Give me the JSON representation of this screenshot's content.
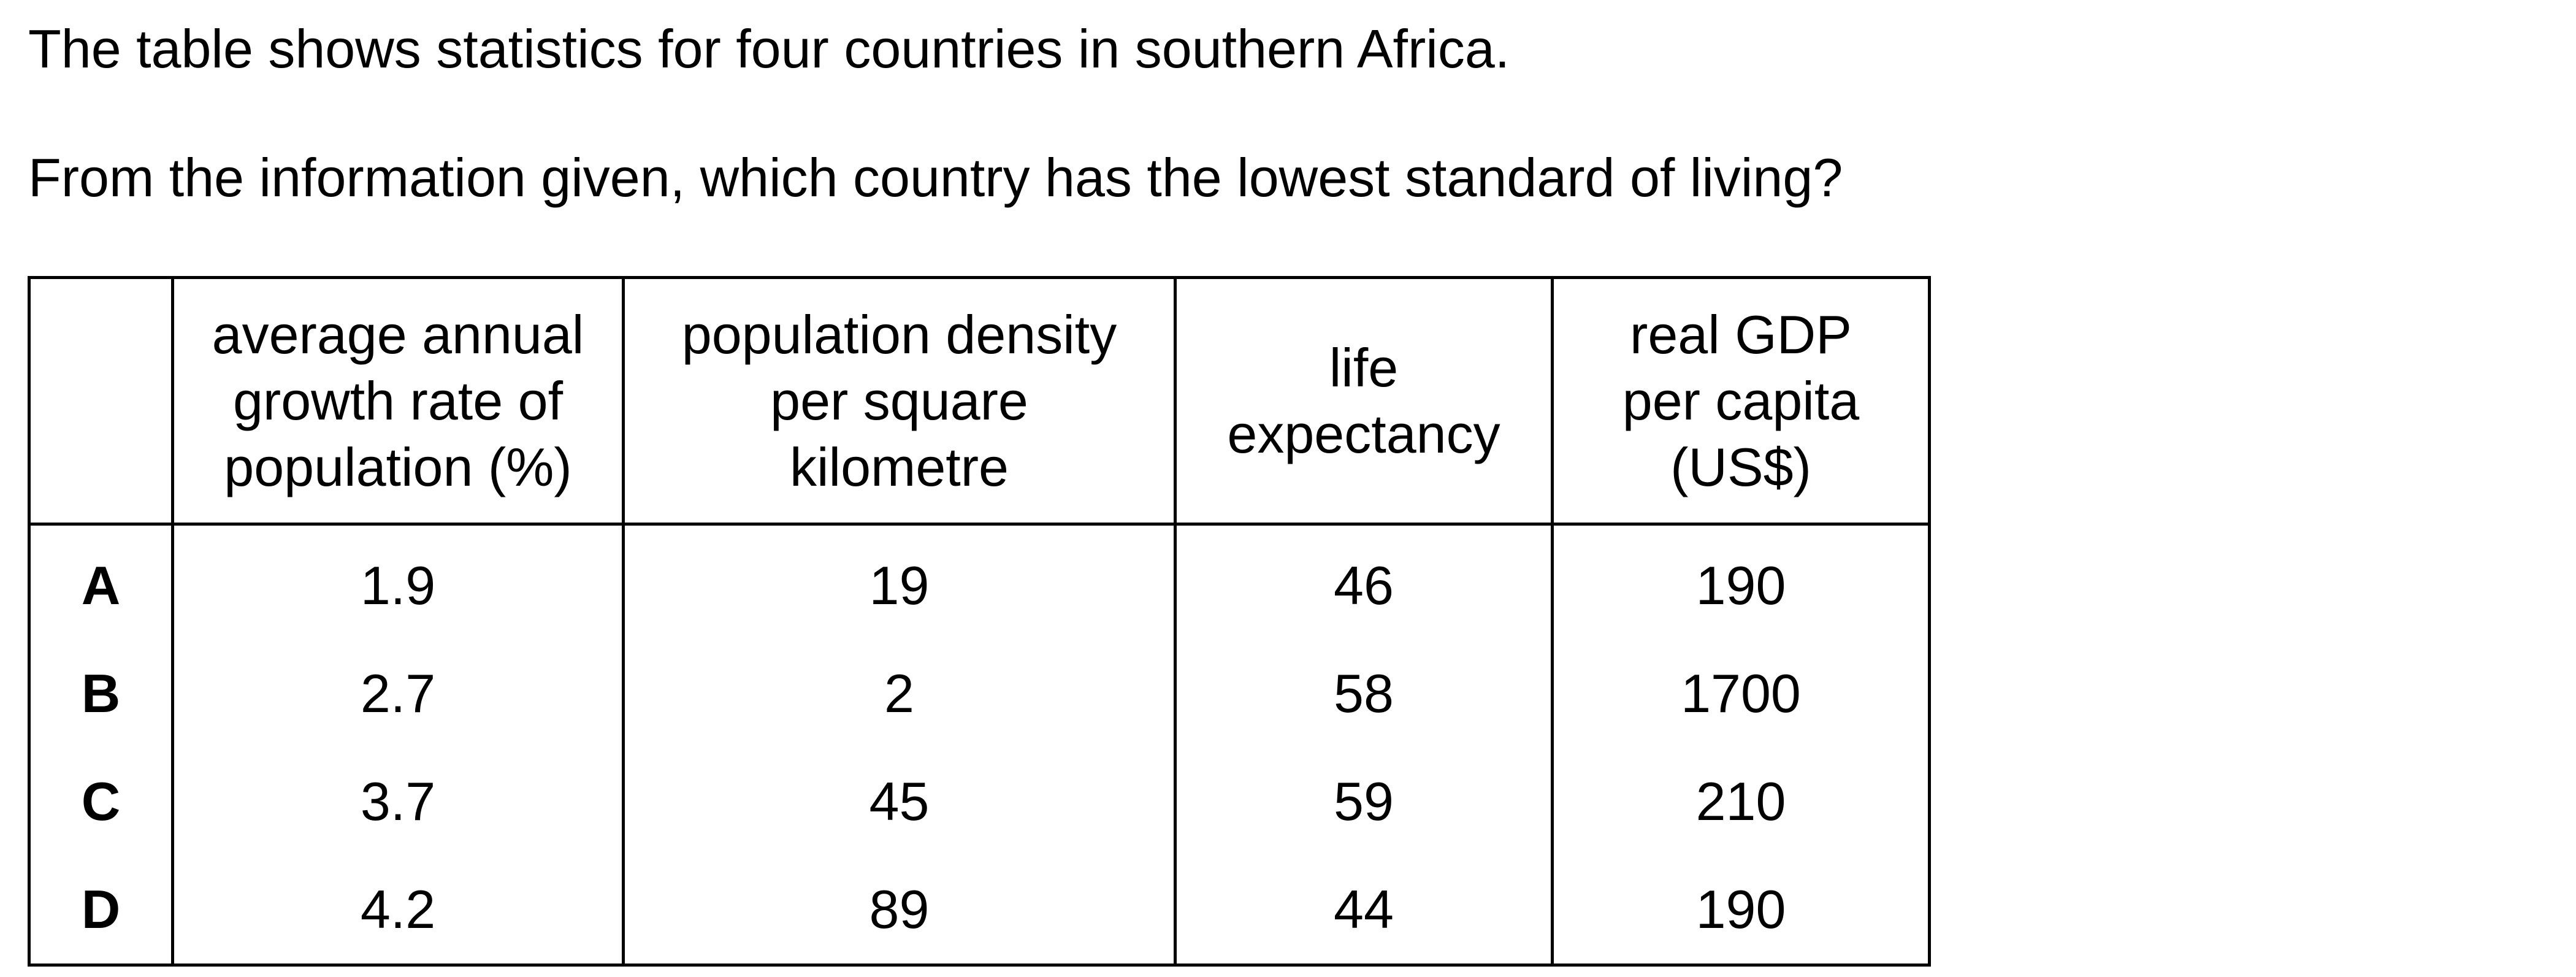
{
  "intro": "The table shows statistics for four countries in southern Africa.",
  "question": "From the information given, which country has the lowest standard of living?",
  "table": {
    "headers": [
      "",
      [
        "average annual",
        "growth rate of",
        "population (%)"
      ],
      [
        "population density",
        "per square",
        "kilometre"
      ],
      [
        "life",
        "expectancy"
      ],
      [
        "real GDP",
        "per capita",
        "(US$)"
      ]
    ],
    "rows": [
      {
        "label": "A",
        "growth": "1.9",
        "density": "19",
        "life": "46",
        "gdp": "190"
      },
      {
        "label": "B",
        "growth": "2.7",
        "density": "2",
        "life": "58",
        "gdp": "1700"
      },
      {
        "label": "C",
        "growth": "3.7",
        "density": "45",
        "life": "59",
        "gdp": "210"
      },
      {
        "label": "D",
        "growth": "4.2",
        "density": "89",
        "life": "44",
        "gdp": "190"
      }
    ]
  }
}
